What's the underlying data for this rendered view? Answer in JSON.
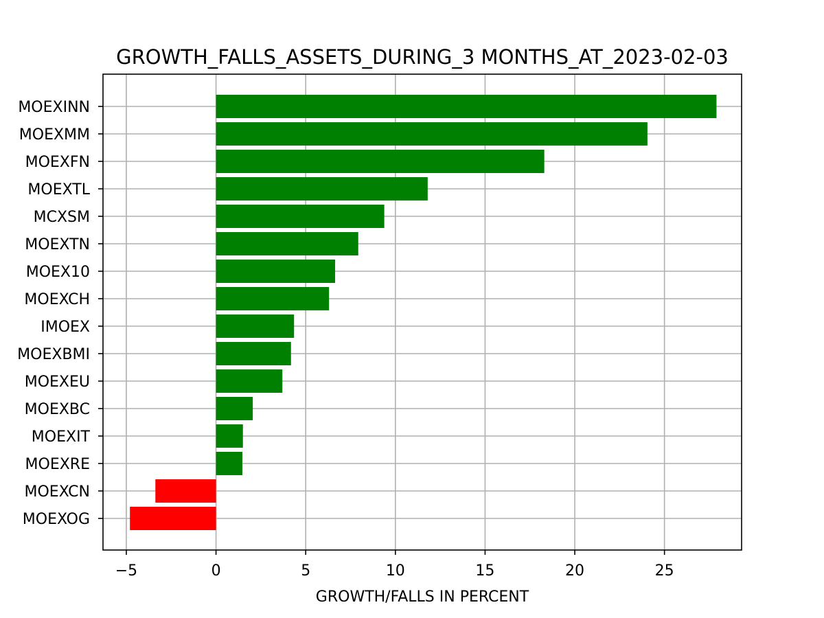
{
  "chart_data": {
    "type": "bar",
    "orientation": "horizontal",
    "title": "GROWTH_FALLS_ASSETS_DURING_3 MONTHS_AT_2023-02-03",
    "xlabel": "GROWTH/FALLS IN PERCENT",
    "ylabel": "",
    "categories": [
      "MOEXINN",
      "MOEXMM",
      "MOEXFN",
      "MOEXTL",
      "MCXSM",
      "MOEXTN",
      "MOEX10",
      "MOEXCH",
      "IMOEX",
      "MOEXBMI",
      "MOEXEU",
      "MOEXBC",
      "MOEXIT",
      "MOEXRE",
      "MOEXCN",
      "MOEXOG"
    ],
    "values": [
      27.9,
      24.05,
      18.3,
      11.8,
      9.38,
      7.93,
      6.64,
      6.3,
      4.35,
      4.18,
      3.7,
      2.05,
      1.5,
      1.47,
      -3.38,
      -4.8
    ],
    "xlim": [
      -6.3,
      29.3
    ],
    "xticks": [
      -5,
      0,
      5,
      10,
      15,
      20,
      25
    ],
    "xtick_labels": [
      "−5",
      "0",
      "5",
      "10",
      "15",
      "20",
      "25"
    ],
    "grid": true,
    "colors": {
      "positive": "#008000",
      "negative": "#ff0000",
      "grid": "#b0b0b0"
    }
  }
}
